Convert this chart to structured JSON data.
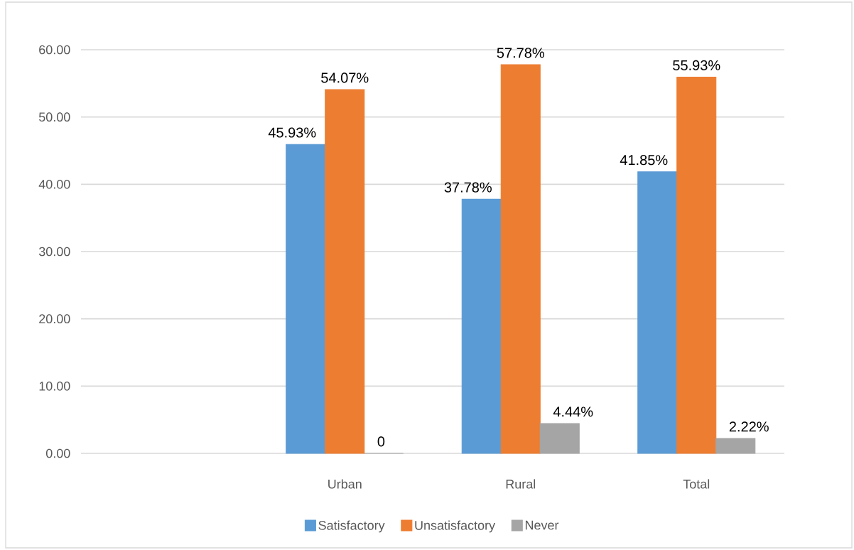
{
  "chart_data": {
    "type": "bar",
    "categories": [
      null,
      "Urban",
      "Rural",
      "Total"
    ],
    "series": [
      {
        "name": "Satisfactory",
        "color": "#5b9bd5",
        "values": [
          null,
          45.93,
          37.78,
          41.85
        ],
        "value_labels": [
          null,
          "45.93%",
          "37.78%",
          "41.85%"
        ]
      },
      {
        "name": "Unsatisfactory",
        "color": "#ed7d31",
        "values": [
          null,
          54.07,
          57.78,
          55.93
        ],
        "value_labels": [
          null,
          "54.07%",
          "57.78%",
          "55.93%"
        ]
      },
      {
        "name": "Never",
        "color": "#a5a5a5",
        "values": [
          null,
          0,
          4.44,
          2.22
        ],
        "value_labels": [
          null,
          "0",
          "4.44%",
          "2.22%"
        ]
      }
    ],
    "ylim": [
      0,
      60
    ],
    "yticks": [
      {
        "value": 0,
        "label": "0.00"
      },
      {
        "value": 10,
        "label": "10.00"
      },
      {
        "value": 20,
        "label": "20.00"
      },
      {
        "value": 30,
        "label": "30.00"
      },
      {
        "value": 40,
        "label": "40.00"
      },
      {
        "value": 50,
        "label": "50.00"
      },
      {
        "value": 60,
        "label": "60.00"
      }
    ],
    "grid": "y",
    "legend": "bottom"
  }
}
